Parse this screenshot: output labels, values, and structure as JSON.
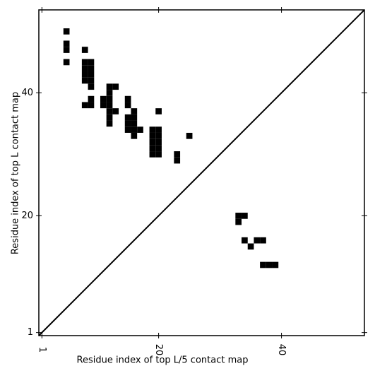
{
  "chart_data": {
    "type": "contact_map",
    "xlabel": "Residue index of top L/5 contact map",
    "ylabel": "Residue index of top L contact map",
    "x": [
      5,
      5,
      5,
      5,
      8,
      8,
      8,
      8,
      8,
      9,
      9,
      9,
      9,
      9,
      12,
      13,
      12,
      12,
      12,
      12,
      11,
      11,
      8,
      9,
      9,
      13,
      12,
      12,
      15,
      15,
      16,
      16,
      16,
      16,
      16,
      15,
      15,
      15,
      17,
      20,
      19,
      19,
      19,
      19,
      19,
      20,
      20,
      20,
      20,
      20,
      23,
      23,
      25,
      33,
      34,
      33,
      34,
      35,
      36,
      37,
      37,
      38,
      39
    ],
    "y": [
      50,
      47,
      48,
      45,
      47,
      42,
      43,
      44,
      45,
      42,
      43,
      44,
      45,
      41,
      41,
      41,
      37,
      38,
      39,
      40,
      38,
      39,
      38,
      38,
      39,
      37,
      35,
      36,
      38,
      39,
      33,
      34,
      35,
      36,
      37,
      34,
      35,
      36,
      34,
      37,
      30,
      31,
      32,
      33,
      34,
      30,
      31,
      32,
      33,
      34,
      29,
      30,
      33,
      20,
      20,
      19,
      16,
      15,
      16,
      16,
      12,
      12,
      12
    ],
    "color": "#000000",
    "xlim": [
      0.5,
      53.5
    ],
    "ylim": [
      0.5,
      53.5
    ],
    "xticks": [
      1,
      20,
      40
    ],
    "yticks": [
      1,
      20,
      40
    ]
  }
}
